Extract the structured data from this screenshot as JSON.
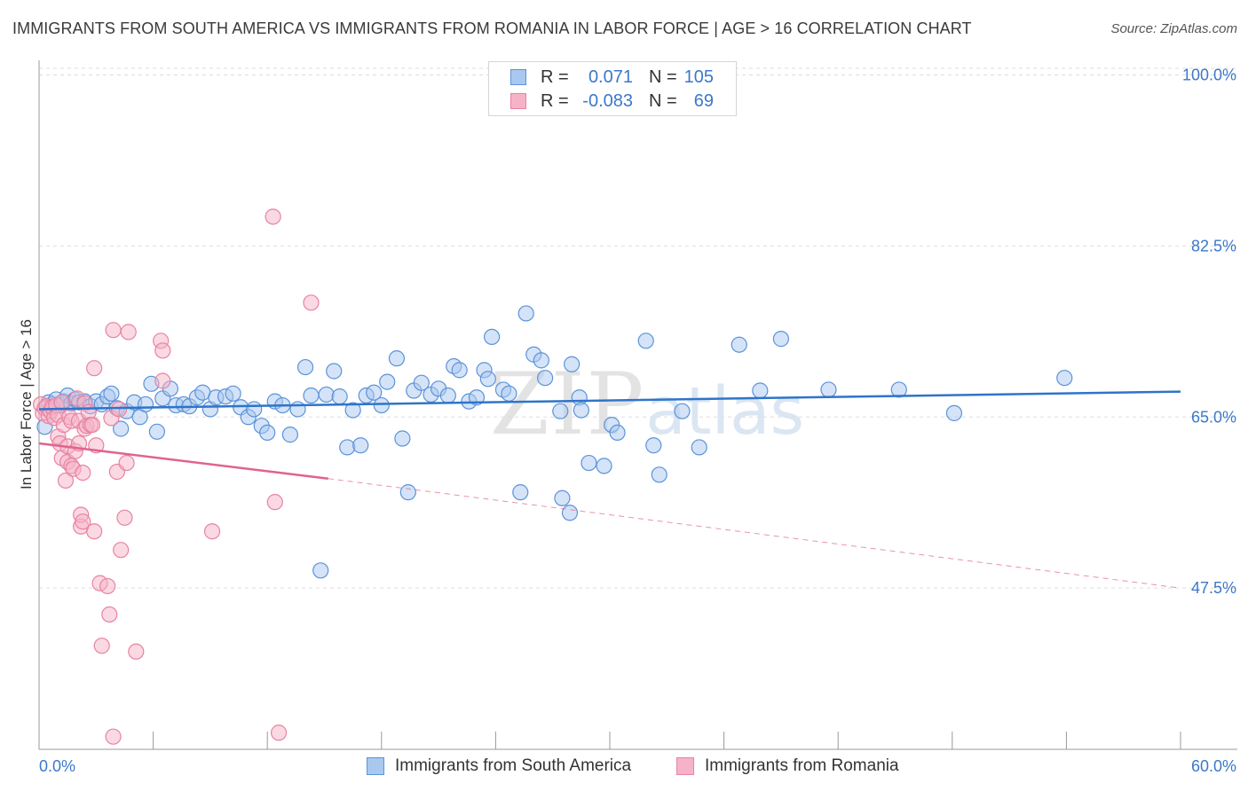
{
  "title": "IMMIGRANTS FROM SOUTH AMERICA VS IMMIGRANTS FROM ROMANIA IN LABOR FORCE | AGE > 16 CORRELATION CHART",
  "source": "Source: ZipAtlas.com",
  "watermark": {
    "zip": "ZIP",
    "atlas": "atlas"
  },
  "legend": {
    "series1": {
      "r_label": "R =",
      "r_value": "0.071",
      "n_label": "N =",
      "n_value": "105"
    },
    "series2": {
      "r_label": "R =",
      "r_value": "-0.083",
      "n_label": "N =",
      "n_value": "69"
    }
  },
  "colors": {
    "blue_fill": "#a9c8ef",
    "blue_stroke": "#5b93d9",
    "blue_line": "#2f74c9",
    "pink_fill": "#f6b3c7",
    "pink_stroke": "#e882a3",
    "pink_line": "#e0638e",
    "tick_text": "#3b78c9",
    "grid": "#dddddd"
  },
  "chart_data": {
    "type": "scatter",
    "title": "IMMIGRANTS FROM SOUTH AMERICA VS IMMIGRANTS FROM ROMANIA IN LABOR FORCE | AGE > 16 CORRELATION CHART",
    "xlabel": "",
    "ylabel": "In Labor Force | Age > 16",
    "xlim": [
      0,
      60
    ],
    "ylim": [
      31,
      101.5
    ],
    "x_tick_labels": [
      "0.0%",
      "60.0%"
    ],
    "y_ticks": [
      47.5,
      65.0,
      82.5,
      100.0
    ],
    "y_tick_labels": [
      "47.5%",
      "65.0%",
      "82.5%",
      "100.0%"
    ],
    "grid": "horizontal dashed",
    "legend_position": "top-center",
    "series": [
      {
        "name": "Immigrants from South America",
        "color": "#a9c8ef",
        "trend": {
          "x": [
            0,
            60
          ],
          "y": [
            65.8,
            67.6
          ]
        },
        "points": [
          [
            0.3,
            64
          ],
          [
            0.5,
            66.5
          ],
          [
            0.7,
            66.3
          ],
          [
            0.9,
            66.8
          ],
          [
            1.1,
            66.2
          ],
          [
            1.3,
            66.6
          ],
          [
            1.5,
            67.2
          ],
          [
            1.7,
            66.4
          ],
          [
            1.9,
            66.8
          ],
          [
            2.1,
            66.5
          ],
          [
            2.4,
            66.6
          ],
          [
            2.7,
            66.1
          ],
          [
            3.0,
            66.6
          ],
          [
            3.3,
            66.3
          ],
          [
            3.6,
            67.1
          ],
          [
            3.8,
            67.4
          ],
          [
            4.1,
            65.9
          ],
          [
            4.3,
            63.8
          ],
          [
            4.6,
            65.6
          ],
          [
            5.0,
            66.5
          ],
          [
            5.3,
            65.0
          ],
          [
            5.6,
            66.3
          ],
          [
            5.9,
            68.4
          ],
          [
            6.2,
            63.5
          ],
          [
            6.5,
            66.9
          ],
          [
            6.9,
            67.9
          ],
          [
            7.2,
            66.2
          ],
          [
            7.6,
            66.3
          ],
          [
            7.9,
            66.1
          ],
          [
            8.3,
            67.0
          ],
          [
            8.6,
            67.5
          ],
          [
            9.0,
            65.8
          ],
          [
            9.3,
            67.0
          ],
          [
            9.8,
            67.1
          ],
          [
            10.2,
            67.4
          ],
          [
            10.6,
            66.0
          ],
          [
            11.0,
            65.0
          ],
          [
            11.3,
            65.8
          ],
          [
            11.7,
            64.1
          ],
          [
            12.0,
            63.4
          ],
          [
            12.4,
            66.6
          ],
          [
            12.8,
            66.2
          ],
          [
            13.2,
            63.2
          ],
          [
            13.6,
            65.8
          ],
          [
            14.0,
            70.1
          ],
          [
            14.3,
            67.2
          ],
          [
            14.8,
            49.3
          ],
          [
            15.1,
            67.3
          ],
          [
            15.5,
            69.7
          ],
          [
            15.8,
            67.1
          ],
          [
            16.2,
            61.9
          ],
          [
            16.5,
            65.7
          ],
          [
            16.9,
            62.1
          ],
          [
            17.2,
            67.2
          ],
          [
            17.6,
            67.5
          ],
          [
            18.0,
            66.2
          ],
          [
            18.3,
            68.6
          ],
          [
            18.8,
            71.0
          ],
          [
            19.1,
            62.8
          ],
          [
            19.4,
            57.3
          ],
          [
            19.7,
            67.7
          ],
          [
            20.1,
            68.5
          ],
          [
            20.6,
            67.3
          ],
          [
            21.0,
            67.9
          ],
          [
            21.5,
            67.2
          ],
          [
            21.8,
            70.2
          ],
          [
            22.1,
            69.8
          ],
          [
            22.6,
            66.6
          ],
          [
            23.0,
            67.0
          ],
          [
            23.4,
            69.8
          ],
          [
            23.6,
            68.9
          ],
          [
            23.8,
            73.2
          ],
          [
            24.4,
            67.8
          ],
          [
            24.7,
            67.4
          ],
          [
            25.3,
            57.3
          ],
          [
            25.6,
            75.6
          ],
          [
            26.0,
            71.4
          ],
          [
            26.4,
            70.8
          ],
          [
            26.6,
            69.0
          ],
          [
            27.4,
            65.6
          ],
          [
            27.5,
            56.7
          ],
          [
            27.9,
            55.2
          ],
          [
            28.0,
            70.4
          ],
          [
            28.4,
            67.0
          ],
          [
            28.5,
            65.7
          ],
          [
            28.9,
            60.3
          ],
          [
            29.7,
            60.0
          ],
          [
            30.1,
            64.2
          ],
          [
            30.4,
            63.4
          ],
          [
            31.9,
            72.8
          ],
          [
            32.3,
            62.1
          ],
          [
            32.6,
            59.1
          ],
          [
            33.8,
            65.6
          ],
          [
            34.7,
            61.9
          ],
          [
            36.8,
            72.4
          ],
          [
            37.9,
            67.7
          ],
          [
            39.0,
            73.0
          ],
          [
            41.5,
            67.8
          ],
          [
            45.2,
            67.8
          ],
          [
            48.1,
            65.4
          ],
          [
            53.9,
            69.0
          ]
        ]
      },
      {
        "name": "Immigrants from Romania",
        "color": "#f6b3c7",
        "trend": {
          "x": [
            0,
            15.2
          ],
          "y": [
            62.3,
            58.7
          ]
        },
        "trend_dashed": {
          "x": [
            15.2,
            60
          ],
          "y": [
            58.7,
            47.5
          ]
        },
        "points": [
          [
            0.1,
            66.3
          ],
          [
            0.2,
            65.4
          ],
          [
            0.3,
            65.9
          ],
          [
            0.4,
            66.1
          ],
          [
            0.5,
            65.1
          ],
          [
            0.6,
            65.6
          ],
          [
            0.7,
            66.0
          ],
          [
            0.8,
            64.9
          ],
          [
            0.9,
            66.2
          ],
          [
            1.0,
            63.0
          ],
          [
            1.0,
            65.2
          ],
          [
            1.1,
            62.3
          ],
          [
            1.2,
            66.5
          ],
          [
            1.2,
            60.8
          ],
          [
            1.3,
            64.2
          ],
          [
            1.4,
            58.5
          ],
          [
            1.5,
            62.0
          ],
          [
            1.5,
            60.4
          ],
          [
            1.6,
            65.0
          ],
          [
            1.7,
            60.0
          ],
          [
            1.7,
            64.6
          ],
          [
            1.8,
            59.7
          ],
          [
            1.9,
            61.5
          ],
          [
            2.0,
            66.9
          ],
          [
            2.1,
            64.6
          ],
          [
            2.1,
            62.3
          ],
          [
            2.2,
            53.8
          ],
          [
            2.2,
            55.0
          ],
          [
            2.3,
            54.3
          ],
          [
            2.3,
            59.3
          ],
          [
            2.4,
            66.4
          ],
          [
            2.4,
            63.8
          ],
          [
            2.5,
            64.1
          ],
          [
            2.6,
            65.5
          ],
          [
            2.7,
            64.2
          ],
          [
            2.8,
            64.2
          ],
          [
            2.9,
            53.3
          ],
          [
            2.9,
            70.0
          ],
          [
            3.0,
            62.1
          ],
          [
            3.2,
            48.0
          ],
          [
            3.3,
            41.6
          ],
          [
            3.6,
            47.7
          ],
          [
            3.7,
            44.8
          ],
          [
            3.8,
            64.9
          ],
          [
            3.9,
            73.9
          ],
          [
            3.9,
            32.3
          ],
          [
            4.1,
            59.4
          ],
          [
            4.2,
            65.8
          ],
          [
            4.3,
            51.4
          ],
          [
            4.5,
            54.7
          ],
          [
            4.6,
            60.3
          ],
          [
            4.7,
            73.7
          ],
          [
            5.1,
            41.0
          ],
          [
            6.4,
            72.8
          ],
          [
            6.5,
            71.8
          ],
          [
            6.5,
            68.7
          ],
          [
            9.1,
            53.3
          ],
          [
            12.3,
            85.5
          ],
          [
            12.4,
            56.3
          ],
          [
            12.6,
            32.7
          ],
          [
            14.3,
            76.7
          ]
        ]
      }
    ]
  },
  "bottom_legend": {
    "series1": "Immigrants from South America",
    "series2": "Immigrants from Romania"
  }
}
